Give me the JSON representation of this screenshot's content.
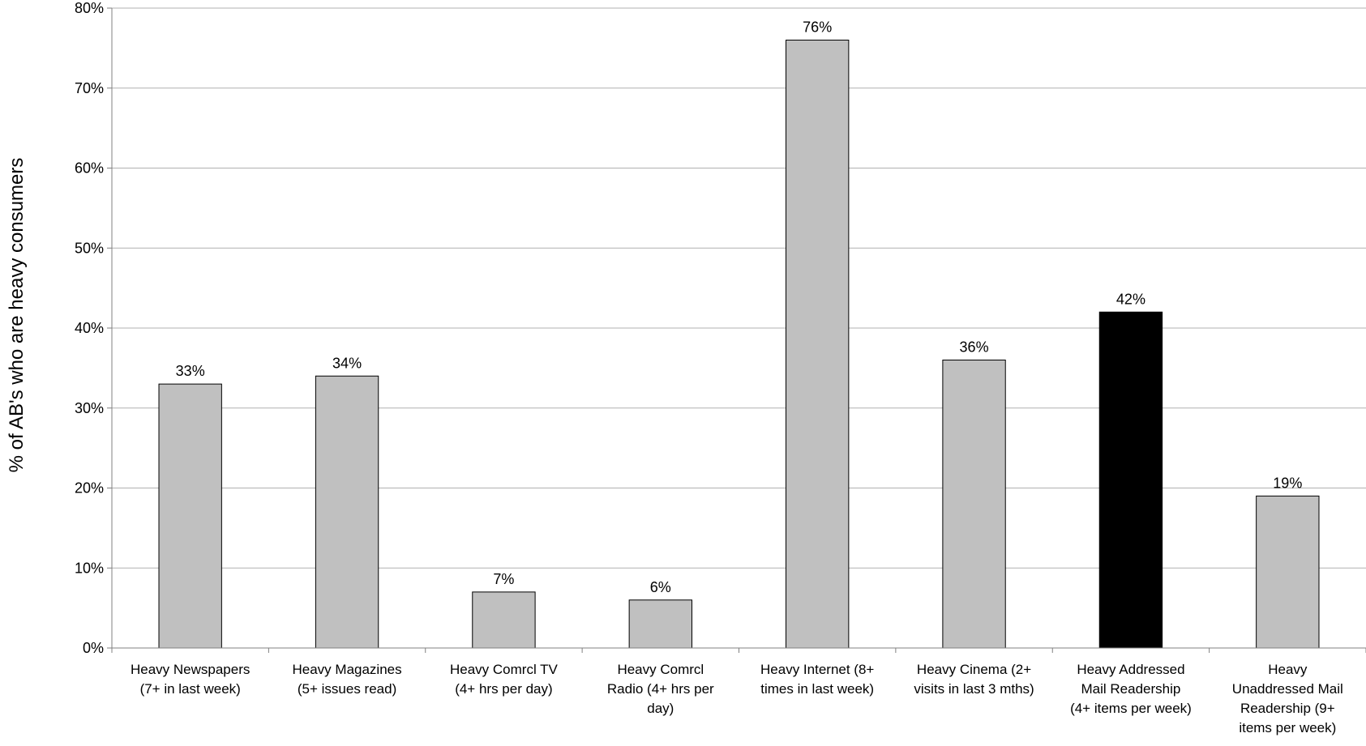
{
  "chart_data": {
    "type": "bar",
    "title": "",
    "xlabel": "",
    "ylabel": "% of AB's who are heavy consumers",
    "ylim": [
      0,
      80
    ],
    "yticks": [
      "0%",
      "10%",
      "20%",
      "30%",
      "40%",
      "50%",
      "60%",
      "70%",
      "80%"
    ],
    "grid": true,
    "categories": [
      [
        "Heavy Newspapers",
        "(7+ in last week)"
      ],
      [
        "Heavy Magazines",
        "(5+ issues read)"
      ],
      [
        "Heavy Comrcl TV",
        "(4+ hrs per day)"
      ],
      [
        "Heavy Comrcl",
        "Radio (4+ hrs per",
        "day)"
      ],
      [
        "Heavy Internet (8+",
        "times in last week)"
      ],
      [
        "Heavy Cinema (2+",
        "visits in last 3 mths)"
      ],
      [
        "Heavy Addressed",
        "Mail Readership",
        "(4+ items per week)"
      ],
      [
        "Heavy",
        "Unaddressed Mail",
        "Readership (9+",
        "items per week)"
      ]
    ],
    "values": [
      33,
      34,
      7,
      6,
      76,
      36,
      42,
      19
    ],
    "data_labels": [
      "33%",
      "34%",
      "7%",
      "6%",
      "76%",
      "36%",
      "42%",
      "19%"
    ],
    "highlight_index": 6,
    "colors": {
      "bar": "#c0c0c0",
      "highlight": "#000000",
      "bar_stroke": "#000000",
      "grid": "#b0b0b0",
      "axis": "#808080"
    }
  }
}
